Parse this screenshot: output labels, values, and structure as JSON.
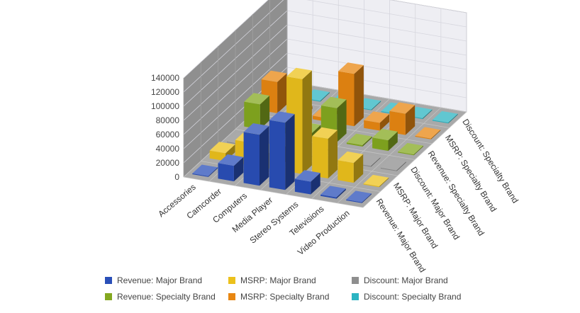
{
  "chart_data": {
    "type": "bar",
    "variant": "3d-grouped-depth",
    "categories": [
      "Accessories",
      "Camcorder",
      "Computers",
      "Media Player",
      "Stereo Systems",
      "Televisions",
      "Video Production"
    ],
    "series": [
      {
        "name": "Revenue: Major Brand",
        "color": "#2a4fb8",
        "values": [
          1000,
          22000,
          72000,
          95000,
          18000,
          2000,
          0
        ]
      },
      {
        "name": "MSRP: Major Brand",
        "color": "#ecc11c",
        "values": [
          11000,
          32000,
          22000,
          134000,
          56000,
          28000,
          0
        ]
      },
      {
        "name": "Discount: Major Brand",
        "color": "#8e8e8e",
        "values": [
          0,
          0,
          0,
          0,
          0,
          0,
          0
        ]
      },
      {
        "name": "Revenue: Specialty Brand",
        "color": "#84a820",
        "values": [
          35000,
          8000,
          6000,
          48000,
          2000,
          15000,
          0
        ]
      },
      {
        "name": "MSRP: Specialty Brand",
        "color": "#e88712",
        "values": [
          44000,
          4000,
          5000,
          74000,
          11000,
          30000,
          0
        ]
      },
      {
        "name": "Discount: Specialty Brand",
        "color": "#2cb4c2",
        "values": [
          0,
          0,
          0,
          0,
          0,
          0,
          0
        ]
      }
    ],
    "yticks": [
      "140000",
      "120000",
      "100000",
      "80000",
      "60000",
      "40000",
      "20000",
      "0"
    ],
    "ylim": [
      0,
      140000
    ],
    "grid": true,
    "legend_position": "bottom"
  }
}
